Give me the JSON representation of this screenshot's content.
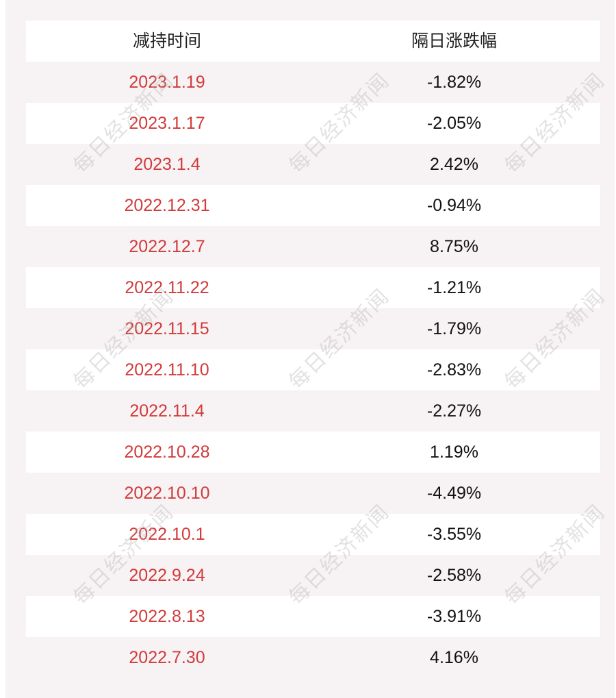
{
  "table": {
    "headers": [
      "减持时间",
      "隔日涨跌幅"
    ],
    "rows": [
      {
        "date": "2023.1.19",
        "change": "-1.82%"
      },
      {
        "date": "2023.1.17",
        "change": "-2.05%"
      },
      {
        "date": "2023.1.4",
        "change": "2.42%"
      },
      {
        "date": "2022.12.31",
        "change": "-0.94%"
      },
      {
        "date": "2022.12.7",
        "change": "8.75%"
      },
      {
        "date": "2022.11.22",
        "change": "-1.21%"
      },
      {
        "date": "2022.11.15",
        "change": "-1.79%"
      },
      {
        "date": "2022.11.10",
        "change": "-2.83%"
      },
      {
        "date": "2022.11.4",
        "change": "-2.27%"
      },
      {
        "date": "2022.10.28",
        "change": "1.19%"
      },
      {
        "date": "2022.10.10",
        "change": "-4.49%"
      },
      {
        "date": "2022.10.1",
        "change": "-3.55%"
      },
      {
        "date": "2022.9.24",
        "change": "-2.58%"
      },
      {
        "date": "2022.8.13",
        "change": "-3.91%"
      },
      {
        "date": "2022.7.30",
        "change": "4.16%"
      }
    ]
  },
  "watermark": "每日经济新闻",
  "colors": {
    "date_text": "#d23a3a",
    "value_text": "#111111",
    "panel_bg": "#f7f2f3"
  }
}
